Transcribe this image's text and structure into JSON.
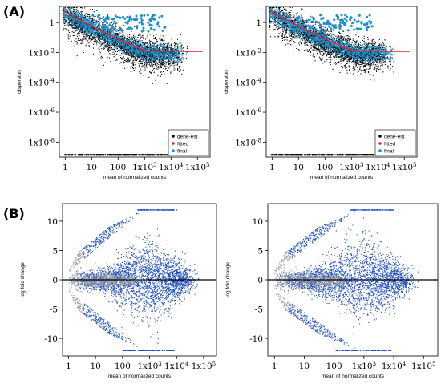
{
  "panel_labels": [
    "(A)",
    "(B)"
  ],
  "chart_data": [
    {
      "type": "scatter",
      "panel": "(A)",
      "plot": "dispersion estimates (left)",
      "xlabel": "mean of normalized counts",
      "ylabel": "dispersion",
      "x_scale": "log10",
      "y_scale": "log10",
      "xlim": [
        0.6,
        300000
      ],
      "ylim": [
        1e-09,
        12
      ],
      "x_ticks": [
        {
          "value": 1,
          "base": "1",
          "exp": ""
        },
        {
          "value": 10,
          "base": "10",
          "exp": ""
        },
        {
          "value": 100,
          "base": "100",
          "exp": ""
        },
        {
          "value": 1000,
          "base": "1x10",
          "exp": "3"
        },
        {
          "value": 10000,
          "base": "1x10",
          "exp": "4"
        },
        {
          "value": 100000,
          "base": "1x10",
          "exp": "5"
        }
      ],
      "y_ticks": [
        {
          "value": 1,
          "base": "1",
          "exp": ""
        },
        {
          "value": 0.01,
          "base": "1x10",
          "exp": "-2"
        },
        {
          "value": 0.0001,
          "base": "1x10",
          "exp": "-4"
        },
        {
          "value": 1e-06,
          "base": "1x10",
          "exp": "-6"
        },
        {
          "value": 1e-08,
          "base": "1x10",
          "exp": "-8"
        }
      ],
      "legend": {
        "position": "bottom-right",
        "entries": [
          {
            "label": "gene-est",
            "color": "#000000"
          },
          {
            "label": "fitted",
            "color": "#e8232a"
          },
          {
            "label": "final",
            "color": "#1d8fc9"
          }
        ]
      },
      "fitted_trend": {
        "x": [
          0.8,
          10,
          100,
          1000,
          5000,
          10000,
          100000
        ],
        "y": [
          5,
          1.0,
          0.11,
          0.024,
          0.013,
          0.012,
          0.012
        ]
      }
    },
    {
      "type": "scatter",
      "panel": "(A)",
      "plot": "dispersion estimates (right)",
      "xlabel": "mean of normalized counts",
      "ylabel": "dispersion",
      "x_scale": "log10",
      "y_scale": "log10",
      "xlim": [
        0.6,
        300000
      ],
      "ylim": [
        1e-09,
        12
      ],
      "x_ticks": [
        {
          "value": 1,
          "base": "1",
          "exp": ""
        },
        {
          "value": 10,
          "base": "10",
          "exp": ""
        },
        {
          "value": 100,
          "base": "100",
          "exp": ""
        },
        {
          "value": 1000,
          "base": "1x10",
          "exp": "3"
        },
        {
          "value": 10000,
          "base": "1x10",
          "exp": "4"
        },
        {
          "value": 100000,
          "base": "1x10",
          "exp": "5"
        }
      ],
      "y_ticks": [
        {
          "value": 1,
          "base": "1",
          "exp": ""
        },
        {
          "value": 0.01,
          "base": "1x10",
          "exp": "-2"
        },
        {
          "value": 0.0001,
          "base": "1x10",
          "exp": "-4"
        },
        {
          "value": 1e-06,
          "base": "1x10",
          "exp": "-6"
        },
        {
          "value": 1e-08,
          "base": "1x10",
          "exp": "-8"
        }
      ],
      "legend": {
        "position": "bottom-right",
        "entries": [
          {
            "label": "gene-est",
            "color": "#000000"
          },
          {
            "label": "fitted",
            "color": "#e8232a"
          },
          {
            "label": "final",
            "color": "#1d8fc9"
          }
        ]
      },
      "fitted_trend": {
        "x": [
          0.8,
          10,
          100,
          1000,
          5000,
          10000,
          100000
        ],
        "y": [
          5,
          1.0,
          0.11,
          0.024,
          0.013,
          0.012,
          0.012
        ]
      }
    },
    {
      "type": "scatter",
      "panel": "(B)",
      "plot": "MA plot (left)",
      "xlabel": "mean of normalized counts",
      "ylabel": "log fold change",
      "x_scale": "log10",
      "y_scale": "linear",
      "xlim": [
        0.6,
        300000
      ],
      "ylim": [
        -13,
        13
      ],
      "x_ticks": [
        {
          "value": 1,
          "base": "1",
          "exp": ""
        },
        {
          "value": 10,
          "base": "10",
          "exp": ""
        },
        {
          "value": 100,
          "base": "100",
          "exp": ""
        },
        {
          "value": 1000,
          "base": "1x10",
          "exp": "3"
        },
        {
          "value": 10000,
          "base": "1x10",
          "exp": "4"
        },
        {
          "value": 100000,
          "base": "1x10",
          "exp": "5"
        }
      ],
      "y_ticks": [
        {
          "value": 10,
          "base": "10",
          "exp": ""
        },
        {
          "value": 5,
          "base": "5",
          "exp": ""
        },
        {
          "value": 0,
          "base": "0",
          "exp": ""
        },
        {
          "value": -5,
          "base": "-5",
          "exp": ""
        },
        {
          "value": -10,
          "base": "-10",
          "exp": ""
        }
      ],
      "reference_line": {
        "y": 0,
        "color": "#000000"
      },
      "point_colors": {
        "significant": "#1f4fbf",
        "not_significant": "#9b9b9b"
      }
    },
    {
      "type": "scatter",
      "panel": "(B)",
      "plot": "MA plot (right)",
      "xlabel": "mean of normalized counts",
      "ylabel": "log fold change",
      "x_scale": "log10",
      "y_scale": "linear",
      "xlim": [
        0.6,
        300000
      ],
      "ylim": [
        -13,
        13
      ],
      "x_ticks": [
        {
          "value": 1,
          "base": "1",
          "exp": ""
        },
        {
          "value": 10,
          "base": "10",
          "exp": ""
        },
        {
          "value": 100,
          "base": "100",
          "exp": ""
        },
        {
          "value": 1000,
          "base": "1x10",
          "exp": "3"
        },
        {
          "value": 10000,
          "base": "1x10",
          "exp": "4"
        },
        {
          "value": 100000,
          "base": "1x10",
          "exp": "5"
        }
      ],
      "y_ticks": [
        {
          "value": 10,
          "base": "10",
          "exp": ""
        },
        {
          "value": 5,
          "base": "5",
          "exp": ""
        },
        {
          "value": 0,
          "base": "0",
          "exp": ""
        },
        {
          "value": -5,
          "base": "-5",
          "exp": ""
        },
        {
          "value": -10,
          "base": "-10",
          "exp": ""
        }
      ],
      "reference_line": {
        "y": 0,
        "color": "#000000"
      },
      "point_colors": {
        "significant": "#1f4fbf",
        "not_significant": "#9b9b9b"
      }
    }
  ]
}
